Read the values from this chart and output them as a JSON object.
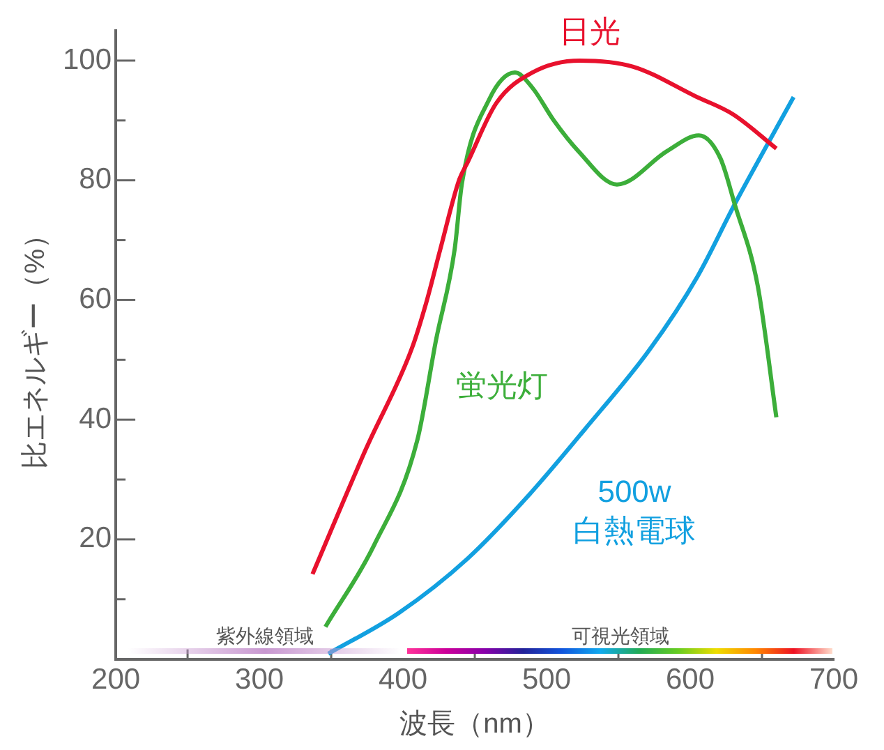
{
  "chart_data": {
    "type": "line",
    "xlabel": "波長（nm）",
    "ylabel": "比エネルギー（%）",
    "xlim": [
      200,
      700
    ],
    "xticks": [
      200,
      {
        "value": 250,
        "label": null
      },
      300,
      {
        "value": 350,
        "label": null
      },
      400,
      {
        "value": 450,
        "label": null
      },
      500,
      {
        "value": 550,
        "label": null
      },
      600,
      {
        "value": 650,
        "label": null
      },
      700
    ],
    "ylim": [
      0,
      105
    ],
    "yticks": [
      {
        "value": 10,
        "label": null
      },
      20,
      {
        "value": 30,
        "label": null
      },
      40,
      {
        "value": 50,
        "label": null
      },
      60,
      {
        "value": 70,
        "label": null
      },
      80,
      {
        "value": 90,
        "label": null
      },
      100
    ],
    "grid": false,
    "legend": false,
    "marker": "none",
    "line_style": "solid",
    "series": [
      {
        "name": "日光",
        "color": "#e8112d",
        "x": [
          337,
          374,
          406,
          416,
          426,
          439,
          445,
          465,
          490,
          523,
          560,
          604,
          630,
          660
        ],
        "values": [
          14.2,
          35,
          51.8,
          59.4,
          68.5,
          80,
          83,
          92.9,
          98,
          100,
          99,
          94,
          91,
          85.3
        ]
      },
      {
        "name": "蛍光灯",
        "color": "#3cae3a",
        "x": [
          346,
          380,
          410,
          423,
          436,
          441,
          460,
          478,
          490,
          505,
          522,
          549,
          584,
          606,
          621,
          631,
          647,
          660
        ],
        "values": [
          5.4,
          19.1,
          36.6,
          53.3,
          68.5,
          79.4,
          93.5,
          98,
          95.5,
          90,
          84.9,
          79.3,
          84.9,
          87.5,
          83.7,
          76,
          62.4,
          40.4
        ]
      },
      {
        "name": "500w\n白熱電球",
        "color": "#12a0e0",
        "x": [
          348,
          397,
          445,
          488,
          527,
          572,
          605,
          631,
          672
        ],
        "values": [
          0.9,
          7.7,
          16.8,
          27.5,
          38.5,
          51.8,
          63.9,
          76,
          93.9
        ]
      }
    ],
    "annotations": [
      "紫外線領域",
      "可視光領域"
    ]
  }
}
